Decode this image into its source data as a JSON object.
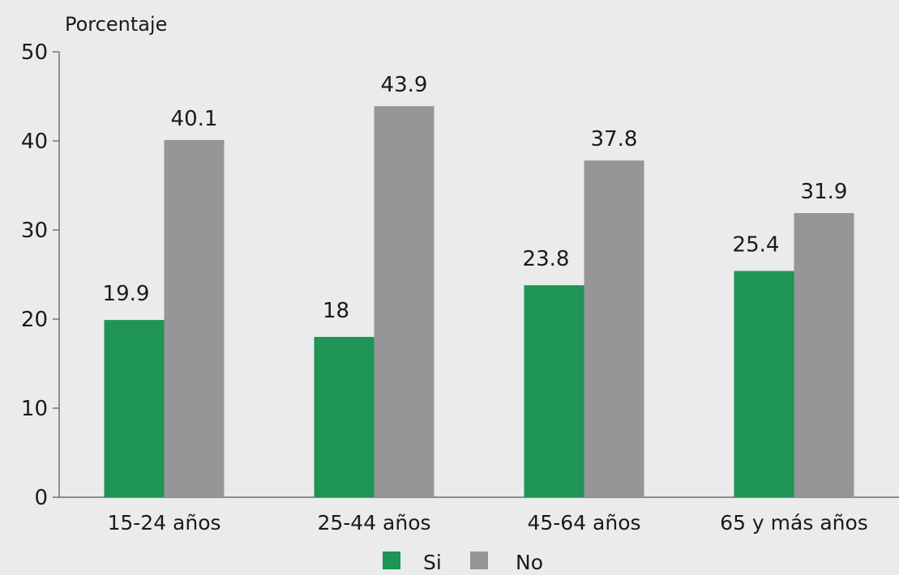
{
  "chart_data": {
    "type": "bar",
    "title": "",
    "xlabel": "",
    "ylabel": "Porcentaje",
    "ylim": [
      0,
      50
    ],
    "yticks": [
      0,
      10,
      20,
      30,
      40,
      50
    ],
    "categories": [
      "15-24 años",
      "25-44 años",
      "45-64 años",
      "65 y más años"
    ],
    "series": [
      {
        "name": "Si",
        "values": [
          19.9,
          18,
          23.8,
          25.4
        ],
        "color": "#1e9455"
      },
      {
        "name": "No",
        "values": [
          40.1,
          43.9,
          37.8,
          31.9
        ],
        "color": "#969699"
      }
    ],
    "data_labels": [
      [
        "19.9",
        "18",
        "23.8",
        "25.4"
      ],
      [
        "40.1",
        "43.9",
        "37.8",
        "31.9"
      ]
    ],
    "grid": false,
    "legend_position": "bottom"
  }
}
